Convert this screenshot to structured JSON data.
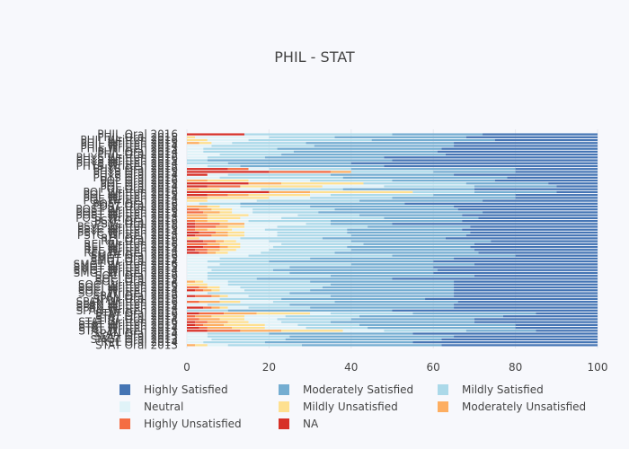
{
  "chart_data": {
    "type": "bar",
    "orientation": "horizontal",
    "stacked": true,
    "title": "PHIL - STAT",
    "xlabel": "",
    "ylabel": "",
    "xlim": [
      0,
      100
    ],
    "xticks": [
      "0",
      "20",
      "40",
      "60",
      "80",
      "100"
    ],
    "grid": true,
    "legend_position": "bottom",
    "series": [
      {
        "name": "NA",
        "color": "#d73027"
      },
      {
        "name": "Highly Unsatisfied",
        "color": "#f46d43"
      },
      {
        "name": "Moderately Unsatisfied",
        "color": "#fdae61"
      },
      {
        "name": "Mildly Unsatisfied",
        "color": "#fee090"
      },
      {
        "name": "Neutral",
        "color": "#e0f3f8"
      },
      {
        "name": "Mildly Satisfied",
        "color": "#abd9e9"
      },
      {
        "name": "Moderately Satisfied",
        "color": "#74add1"
      },
      {
        "name": "Highly Satisfied",
        "color": "#4575b4"
      }
    ],
    "categories": [
      "PHIL Oral 2016",
      "PHIL Oral 2015",
      "PHIL Written 2016",
      "PHIL Written 2015",
      "PHIL Written 2014",
      "PHIL Written 2013",
      "PHIL Oral 2014",
      "PHIL Oral 2013",
      "PHYS Written 2016",
      "PHYS Written 2015",
      "PHYS Written 2014",
      "PHYS Written 2013",
      "PHYS Oral 2016",
      "PHYS Oral 2015",
      "PHYS Oral 2014",
      "PHYS Oral 2013",
      "POL Oral 2016",
      "POL Oral 2015",
      "POL Oral 2014",
      "POL Oral 2013",
      "POL Written 2016",
      "POL Written 2015",
      "POL Written 2014",
      "POL Written 2013",
      "POST Oral 2016",
      "POST Oral 2015",
      "POST Written 2016",
      "POST Written 2015",
      "POST Written 2014",
      "POST Written 2013",
      "PSYC Oral 2016",
      "PSYC Oral 2015",
      "PSYC Written 2016",
      "PSYC Written 2015",
      "PSYC Written 2014",
      "PSYC Written 2013",
      "REL Oral 2016",
      "REL Oral 2015",
      "REL Written 2016",
      "REL Written 2015",
      "REL Written 2014",
      "REL Written 2013",
      "SMGT Oral 2016",
      "SMGT Oral 2015",
      "SMGT Oral 2014",
      "SMGT Written 2016",
      "SMGT Written 2015",
      "SMGT Written 2014",
      "SMGT Written 2013",
      "SOCI Oral 2016",
      "SOCI Oral 2015",
      "SOCI Oral 2014",
      "SOCI Written 2016",
      "SOCI Written 2015",
      "SOCI Written 2014",
      "SOCI Written 2013",
      "SPAN Oral 2016",
      "SPAN Oral 2015",
      "SPAN Written 2016",
      "SPAN Written 2015",
      "SPAN Written 2014",
      "SPAN Written 2013",
      "STAT Oral 2016",
      "STAT Oral 2015",
      "STAT Oral 2014",
      "STAT Written 2016",
      "STAT Written 2015",
      "STAT Written 2014",
      "STAT Written 2013",
      "SPAN Oral 2014",
      "SOCI Oral 2013",
      "SMGT Oral 2013",
      "REL Oral 2014",
      "STAT Oral 2013"
    ],
    "values": [
      [
        14,
        0,
        0,
        0,
        0,
        36,
        22,
        28
      ],
      [
        0,
        0,
        0,
        2,
        18,
        16,
        32,
        32
      ],
      [
        0,
        0,
        0,
        5,
        10,
        30,
        30,
        25
      ],
      [
        0,
        0,
        3,
        3,
        5,
        18,
        36,
        35
      ],
      [
        0,
        0,
        0,
        0,
        6,
        25,
        34,
        35
      ],
      [
        0,
        0,
        0,
        0,
        4,
        18,
        40,
        38
      ],
      [
        0,
        0,
        0,
        0,
        4,
        22,
        35,
        39
      ],
      [
        0,
        0,
        0,
        0,
        8,
        15,
        40,
        37
      ],
      [
        0,
        0,
        0,
        0,
        5,
        14,
        29,
        52
      ],
      [
        0,
        0,
        0,
        0,
        0,
        5,
        45,
        50
      ],
      [
        0,
        0,
        0,
        0,
        0,
        10,
        30,
        60
      ],
      [
        0,
        0,
        0,
        0,
        5,
        8,
        35,
        52
      ],
      [
        10,
        5,
        0,
        0,
        5,
        20,
        40,
        20
      ],
      [
        20,
        15,
        5,
        0,
        0,
        20,
        20,
        20
      ],
      [
        5,
        0,
        0,
        0,
        5,
        25,
        30,
        35
      ],
      [
        0,
        0,
        0,
        0,
        8,
        30,
        40,
        22
      ],
      [
        0,
        0,
        5,
        10,
        15,
        20,
        25,
        25
      ],
      [
        15,
        0,
        8,
        20,
        0,
        25,
        20,
        12
      ],
      [
        5,
        8,
        0,
        20,
        15,
        22,
        20,
        10
      ],
      [
        0,
        0,
        3,
        5,
        10,
        20,
        32,
        30
      ],
      [
        20,
        0,
        10,
        25,
        0,
        15,
        20,
        10
      ],
      [
        5,
        5,
        5,
        15,
        5,
        25,
        20,
        20
      ],
      [
        0,
        0,
        5,
        15,
        10,
        20,
        30,
        20
      ],
      [
        0,
        0,
        0,
        5,
        12,
        25,
        30,
        28
      ],
      [
        0,
        0,
        0,
        0,
        3,
        10,
        40,
        47
      ],
      [
        0,
        0,
        5,
        3,
        5,
        17,
        35,
        35
      ],
      [
        0,
        3,
        3,
        5,
        5,
        20,
        30,
        34
      ],
      [
        0,
        4,
        4,
        3,
        5,
        16,
        40,
        28
      ],
      [
        0,
        0,
        5,
        10,
        12,
        15,
        25,
        33
      ],
      [
        0,
        0,
        5,
        8,
        10,
        25,
        23,
        29
      ],
      [
        0,
        2,
        3,
        5,
        5,
        20,
        32,
        33
      ],
      [
        2,
        6,
        6,
        0,
        15,
        6,
        15,
        50
      ],
      [
        2,
        5,
        3,
        4,
        8,
        22,
        25,
        31
      ],
      [
        0,
        2,
        3,
        6,
        8,
        20,
        28,
        33
      ],
      [
        3,
        4,
        3,
        4,
        8,
        17,
        30,
        31
      ],
      [
        2,
        4,
        4,
        4,
        8,
        18,
        28,
        32
      ],
      [
        0,
        0,
        0,
        3,
        10,
        20,
        30,
        37
      ],
      [
        4,
        3,
        2,
        3,
        8,
        20,
        34,
        26
      ],
      [
        0,
        5,
        3,
        5,
        10,
        20,
        27,
        30
      ],
      [
        4,
        4,
        2,
        3,
        8,
        18,
        30,
        31
      ],
      [
        2,
        3,
        3,
        4,
        8,
        20,
        30,
        30
      ],
      [
        3,
        2,
        2,
        3,
        8,
        18,
        35,
        29
      ],
      [
        0,
        0,
        0,
        0,
        15,
        35,
        30,
        20
      ],
      [
        0,
        0,
        0,
        0,
        8,
        22,
        35,
        35
      ],
      [
        0,
        0,
        0,
        0,
        5,
        15,
        40,
        40
      ],
      [
        0,
        0,
        0,
        0,
        8,
        32,
        30,
        30
      ],
      [
        0,
        0,
        0,
        0,
        5,
        20,
        35,
        40
      ],
      [
        0,
        0,
        0,
        0,
        6,
        15,
        40,
        39
      ],
      [
        0,
        0,
        0,
        0,
        5,
        20,
        35,
        40
      ],
      [
        0,
        0,
        0,
        0,
        5,
        30,
        35,
        30
      ],
      [
        0,
        0,
        0,
        0,
        5,
        12,
        33,
        50
      ],
      [
        0,
        0,
        2,
        2,
        6,
        20,
        35,
        35
      ],
      [
        0,
        0,
        0,
        5,
        5,
        25,
        30,
        35
      ],
      [
        0,
        3,
        2,
        3,
        5,
        20,
        32,
        35
      ],
      [
        2,
        2,
        2,
        2,
        6,
        16,
        35,
        35
      ],
      [
        0,
        0,
        0,
        0,
        5,
        20,
        40,
        35
      ],
      [
        2,
        4,
        2,
        2,
        5,
        20,
        30,
        35
      ],
      [
        0,
        0,
        0,
        0,
        8,
        15,
        35,
        42
      ],
      [
        0,
        3,
        5,
        5,
        8,
        15,
        30,
        34
      ],
      [
        0,
        0,
        0,
        0,
        5,
        20,
        40,
        35
      ],
      [
        4,
        2,
        2,
        2,
        5,
        15,
        35,
        35
      ],
      [
        0,
        0,
        0,
        0,
        0,
        10,
        40,
        50
      ],
      [
        3,
        6,
        8,
        13,
        5,
        20,
        30,
        15
      ],
      [
        0,
        2,
        4,
        8,
        10,
        18,
        35,
        23
      ],
      [
        0,
        3,
        5,
        6,
        8,
        18,
        30,
        30
      ],
      [
        2,
        3,
        5,
        5,
        8,
        12,
        35,
        30
      ],
      [
        2,
        2,
        5,
        10,
        8,
        15,
        38,
        20
      ],
      [
        3,
        2,
        6,
        8,
        10,
        15,
        36,
        20
      ],
      [
        5,
        8,
        10,
        15,
        10,
        20,
        17,
        15
      ],
      [
        0,
        0,
        0,
        0,
        5,
        15,
        35,
        45
      ],
      [
        0,
        0,
        0,
        0,
        5,
        20,
        40,
        35
      ],
      [
        0,
        0,
        0,
        0,
        6,
        18,
        38,
        38
      ],
      [
        0,
        0,
        0,
        0,
        4,
        15,
        36,
        45
      ],
      [
        0,
        0,
        2,
        3,
        5,
        18,
        34,
        38
      ]
    ]
  },
  "legend": {
    "items": [
      {
        "label": "Highly Satisfied",
        "color": "#4575b4"
      },
      {
        "label": "Moderately Satisfied",
        "color": "#74add1"
      },
      {
        "label": "Mildly Satisfied",
        "color": "#abd9e9"
      },
      {
        "label": "Neutral",
        "color": "#e0f3f8"
      },
      {
        "label": "Mildly Unsatisfied",
        "color": "#fee090"
      },
      {
        "label": "Moderately Unsatisfied",
        "color": "#fdae61"
      },
      {
        "label": "Highly Unsatisfied",
        "color": "#f46d43"
      },
      {
        "label": "NA",
        "color": "#d73027"
      }
    ]
  }
}
